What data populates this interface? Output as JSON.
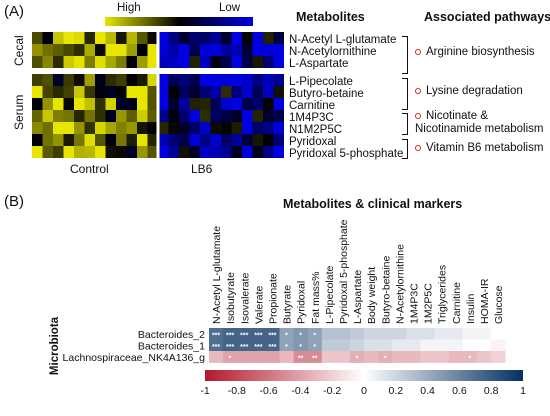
{
  "panel_a": {
    "label": "(A)",
    "legend": {
      "high": "High",
      "low": "Low",
      "colors": [
        "#e6e600",
        "#000000",
        "#0000e0"
      ]
    },
    "headers": {
      "metabolites": "Metabolites",
      "pathways": "Associated pathways"
    },
    "groups": {
      "row_1": "Cecal",
      "row_2": "Serum",
      "col_1": "Control",
      "col_2": "LB6"
    },
    "cecal_metabolites": [
      "N-Acetyl L-glutamate",
      "N-Acetylornithine",
      "L-Aspartate"
    ],
    "serum_metabolites": [
      "L-Pipecolate",
      "Butyro-betaine",
      "Carnitine",
      "1M4P3C",
      "N1M2P5C",
      "Pyridoxal",
      "Pyridoxal 5-phosphate"
    ],
    "pathways": [
      "Arginine biosynthesis",
      "Lysine degradation",
      "Nicotinate & Nicotinamide metabolism",
      "Vitamin B6 metabolism"
    ]
  },
  "panel_b": {
    "label": "(B)",
    "title": "Metabolites & clinical markers",
    "row_axis_label": "Microbiota"
  },
  "chart_data": {
    "type": "heatmap",
    "title": "Metabolites & clinical markers",
    "ylabel": "Microbiota",
    "columns": [
      "N-Acetyl L-glutamate",
      "Isobutyrate",
      "Isovalerate",
      "Valerate",
      "Propionate",
      "Butyrate",
      "Pyridoxal",
      "Fat mass%",
      "L-Pipecolate",
      "Pyridoxal 5-phosphate",
      "L-Aspartate",
      "Body weight",
      "Butyro-betaine",
      "N-Acetylornithine",
      "1M4P3C",
      "1M2P5C",
      "Triglycerides",
      "Carnitine",
      "Insulin",
      "HOMA-IR",
      "Glucose"
    ],
    "rows": [
      "Bacteroides_2",
      "Bacteroides_1",
      "Lachnospiraceae_NK4A136_g"
    ],
    "values": [
      [
        0.7,
        0.75,
        0.75,
        0.75,
        0.75,
        0.45,
        0.5,
        0.45,
        0.3,
        0.3,
        0.25,
        0.2,
        0.2,
        0.2,
        0.15,
        0.15,
        0.1,
        0.1,
        0.05,
        0.05,
        0.0
      ],
      [
        0.7,
        0.75,
        0.75,
        0.75,
        0.75,
        0.45,
        0.5,
        0.45,
        0.25,
        0.25,
        0.2,
        0.15,
        0.15,
        0.1,
        0.1,
        0.05,
        0.05,
        0.05,
        0.0,
        0.0,
        -0.05
      ],
      [
        -0.3,
        -0.4,
        -0.4,
        -0.4,
        -0.4,
        -0.3,
        -0.5,
        -0.5,
        -0.25,
        -0.25,
        -0.35,
        -0.3,
        -0.35,
        -0.3,
        -0.3,
        -0.25,
        -0.25,
        -0.3,
        -0.3,
        -0.25,
        -0.2
      ]
    ],
    "significance": [
      [
        "***",
        "***",
        "***",
        "***",
        "***",
        "*",
        "*",
        "*",
        "",
        "",
        "",
        "",
        "",
        "",
        "",
        "",
        "",
        "",
        "",
        "",
        ""
      ],
      [
        "***",
        "***",
        "***",
        "***",
        "***",
        "*",
        "*",
        "*",
        "",
        "",
        "",
        "",
        "",
        "",
        "",
        "",
        "",
        "",
        "",
        "",
        ""
      ],
      [
        "",
        "*",
        "",
        "",
        "",
        "",
        "**",
        "**",
        "",
        "",
        "*",
        "",
        "*",
        "",
        "",
        "",
        "",
        "",
        "*",
        "",
        ""
      ]
    ],
    "colorbar": {
      "range": [
        -1,
        1
      ],
      "ticks": [
        -1,
        -0.8,
        -0.6,
        -0.4,
        -0.2,
        0,
        0.2,
        0.4,
        0.6,
        0.8,
        1
      ],
      "colors": [
        "#b2182b",
        "#ffffff",
        "#053061"
      ]
    }
  }
}
